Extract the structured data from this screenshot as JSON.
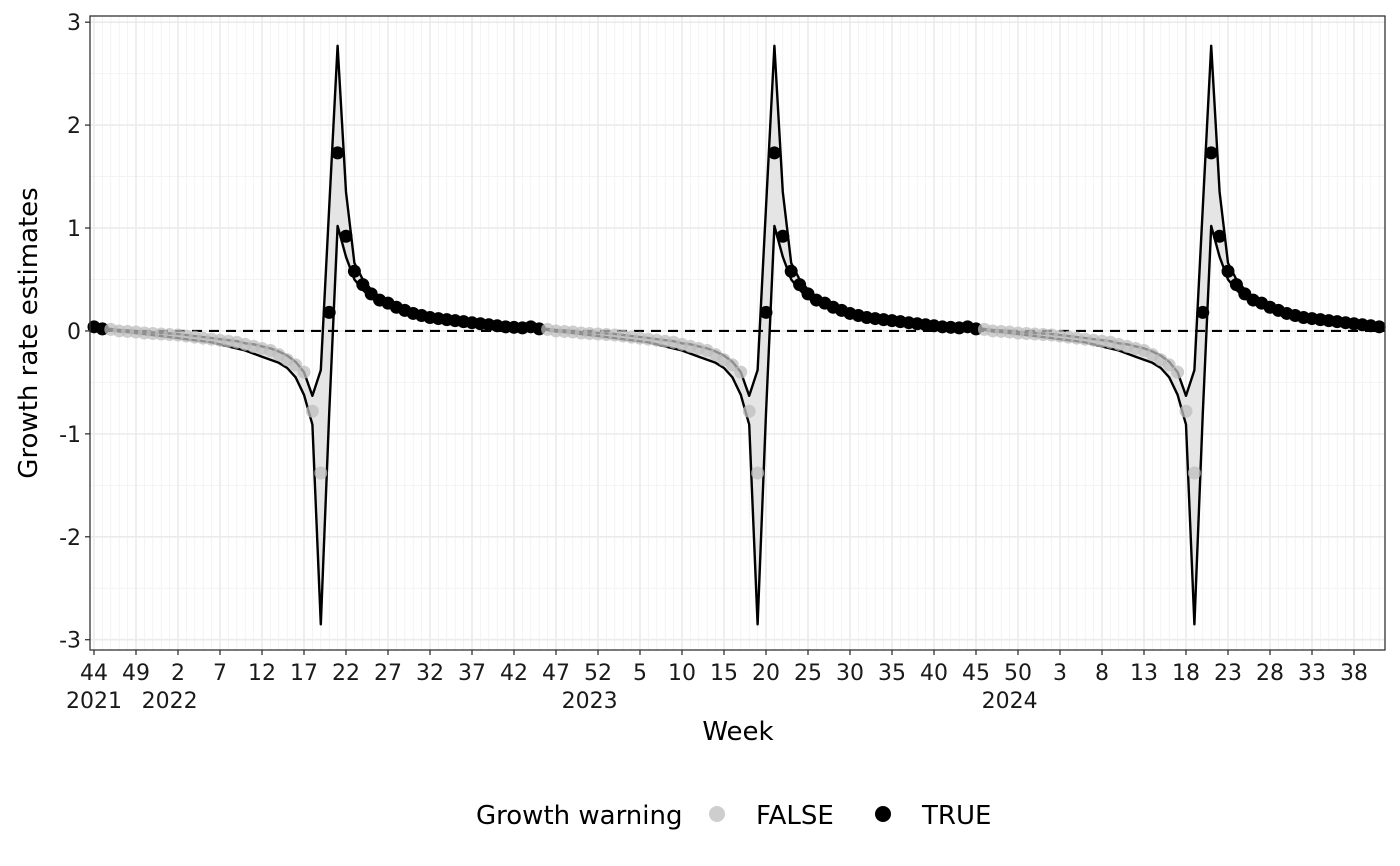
{
  "chart_data": {
    "type": "line",
    "xlabel": "Week",
    "ylabel": "Growth rate estimates",
    "ylim": [
      -3.1,
      3.06
    ],
    "y_ticks": [
      "-3",
      "-2",
      "-1",
      "0",
      "1",
      "2",
      "3"
    ],
    "y_tick_values": [
      -3,
      -2,
      -1,
      0,
      1,
      2,
      3
    ],
    "x_tick_labels": [
      "44",
      "49",
      "2",
      "7",
      "12",
      "17",
      "22",
      "27",
      "32",
      "37",
      "42",
      "47",
      "52",
      "5",
      "10",
      "15",
      "20",
      "25",
      "30",
      "35",
      "40",
      "45",
      "50",
      "3",
      "8",
      "13",
      "18",
      "23",
      "28",
      "33",
      "38"
    ],
    "x_year_labels": [
      {
        "label": "2021",
        "week_index": 0
      },
      {
        "label": "2022",
        "week_index": 9
      },
      {
        "label": "2023",
        "week_index": 59
      },
      {
        "label": "2024",
        "week_index": 109
      }
    ],
    "x_tick_week_indices": [
      0,
      5,
      10,
      15,
      20,
      25,
      30,
      35,
      40,
      45,
      50,
      55,
      60,
      65,
      70,
      75,
      80,
      85,
      90,
      95,
      100,
      105,
      110,
      115,
      120,
      125,
      130,
      135,
      140,
      145,
      150
    ],
    "n_weeks": 154,
    "reference_line": {
      "y": 0,
      "style": "dashed"
    },
    "template_cycle": {
      "length": 52,
      "estimate": [
        0.04,
        0.02,
        0.015,
        0.0,
        -0.005,
        -0.01,
        -0.02,
        -0.025,
        -0.03,
        -0.035,
        -0.04,
        -0.05,
        -0.06,
        -0.07,
        -0.08,
        -0.09,
        -0.1,
        -0.11,
        -0.13,
        -0.15,
        -0.17,
        -0.19,
        -0.23,
        -0.28,
        -0.33,
        -0.4,
        -0.78,
        -1.38,
        0.18,
        1.73,
        0.92,
        0.58,
        0.45,
        0.36,
        0.3,
        0.27,
        0.23,
        0.2,
        0.17,
        0.15,
        0.13,
        0.12,
        0.11,
        0.1,
        0.09,
        0.08,
        0.07,
        0.06,
        0.05,
        0.04,
        0.035,
        0.03
      ],
      "lower": [
        0.04,
        0.02,
        0.01,
        -0.005,
        -0.01,
        -0.02,
        -0.03,
        -0.04,
        -0.05,
        -0.06,
        -0.07,
        -0.08,
        -0.09,
        -0.1,
        -0.11,
        -0.13,
        -0.15,
        -0.17,
        -0.19,
        -0.22,
        -0.25,
        -0.28,
        -0.31,
        -0.36,
        -0.45,
        -0.62,
        -0.91,
        -2.85,
        -0.8,
        1.02,
        0.72,
        0.5,
        0.4,
        0.32,
        0.27,
        0.24,
        0.2,
        0.17,
        0.15,
        0.13,
        0.11,
        0.1,
        0.09,
        0.08,
        0.07,
        0.06,
        0.05,
        0.045,
        0.04,
        0.035,
        0.03,
        0.025
      ],
      "upper": [
        0.04,
        0.025,
        0.02,
        0.01,
        0.005,
        0.0,
        -0.01,
        -0.015,
        -0.02,
        -0.025,
        -0.03,
        -0.04,
        -0.05,
        -0.06,
        -0.07,
        -0.08,
        -0.09,
        -0.1,
        -0.12,
        -0.13,
        -0.15,
        -0.17,
        -0.2,
        -0.24,
        -0.3,
        -0.4,
        -0.63,
        -0.38,
        1.2,
        2.77,
        1.35,
        0.66,
        0.5,
        0.4,
        0.33,
        0.29,
        0.26,
        0.22,
        0.19,
        0.17,
        0.15,
        0.14,
        0.12,
        0.11,
        0.1,
        0.09,
        0.08,
        0.07,
        0.06,
        0.05,
        0.045,
        0.04
      ],
      "warning": [
        true,
        true,
        false,
        false,
        false,
        false,
        false,
        false,
        false,
        false,
        false,
        false,
        false,
        false,
        false,
        false,
        false,
        false,
        false,
        false,
        false,
        false,
        false,
        false,
        false,
        false,
        false,
        false,
        true,
        true,
        true,
        true,
        true,
        true,
        true,
        true,
        true,
        true,
        true,
        true,
        true,
        true,
        true,
        true,
        true,
        true,
        true,
        true,
        true,
        true,
        true,
        true
      ],
      "true_point_offsets": [
        29,
        30,
        31,
        32,
        33,
        34,
        35,
        36,
        37,
        38,
        39,
        40,
        41,
        42,
        43,
        44,
        45,
        46,
        47,
        48,
        49,
        50,
        51
      ]
    },
    "cycles_start_week_index": [
      0,
      52,
      104
    ],
    "colors": {
      "warning_true": "#000000",
      "warning_false": "#bdbdbd",
      "ribbon": "#e5e5e5",
      "line": "#000000",
      "grid_major": "#ebebeb",
      "grid_minor": "#f3f3f3"
    }
  },
  "legend": {
    "title": "Growth warning",
    "items": [
      {
        "label": "FALSE",
        "color": "#bdbdbd"
      },
      {
        "label": "TRUE",
        "color": "#000000"
      }
    ]
  }
}
